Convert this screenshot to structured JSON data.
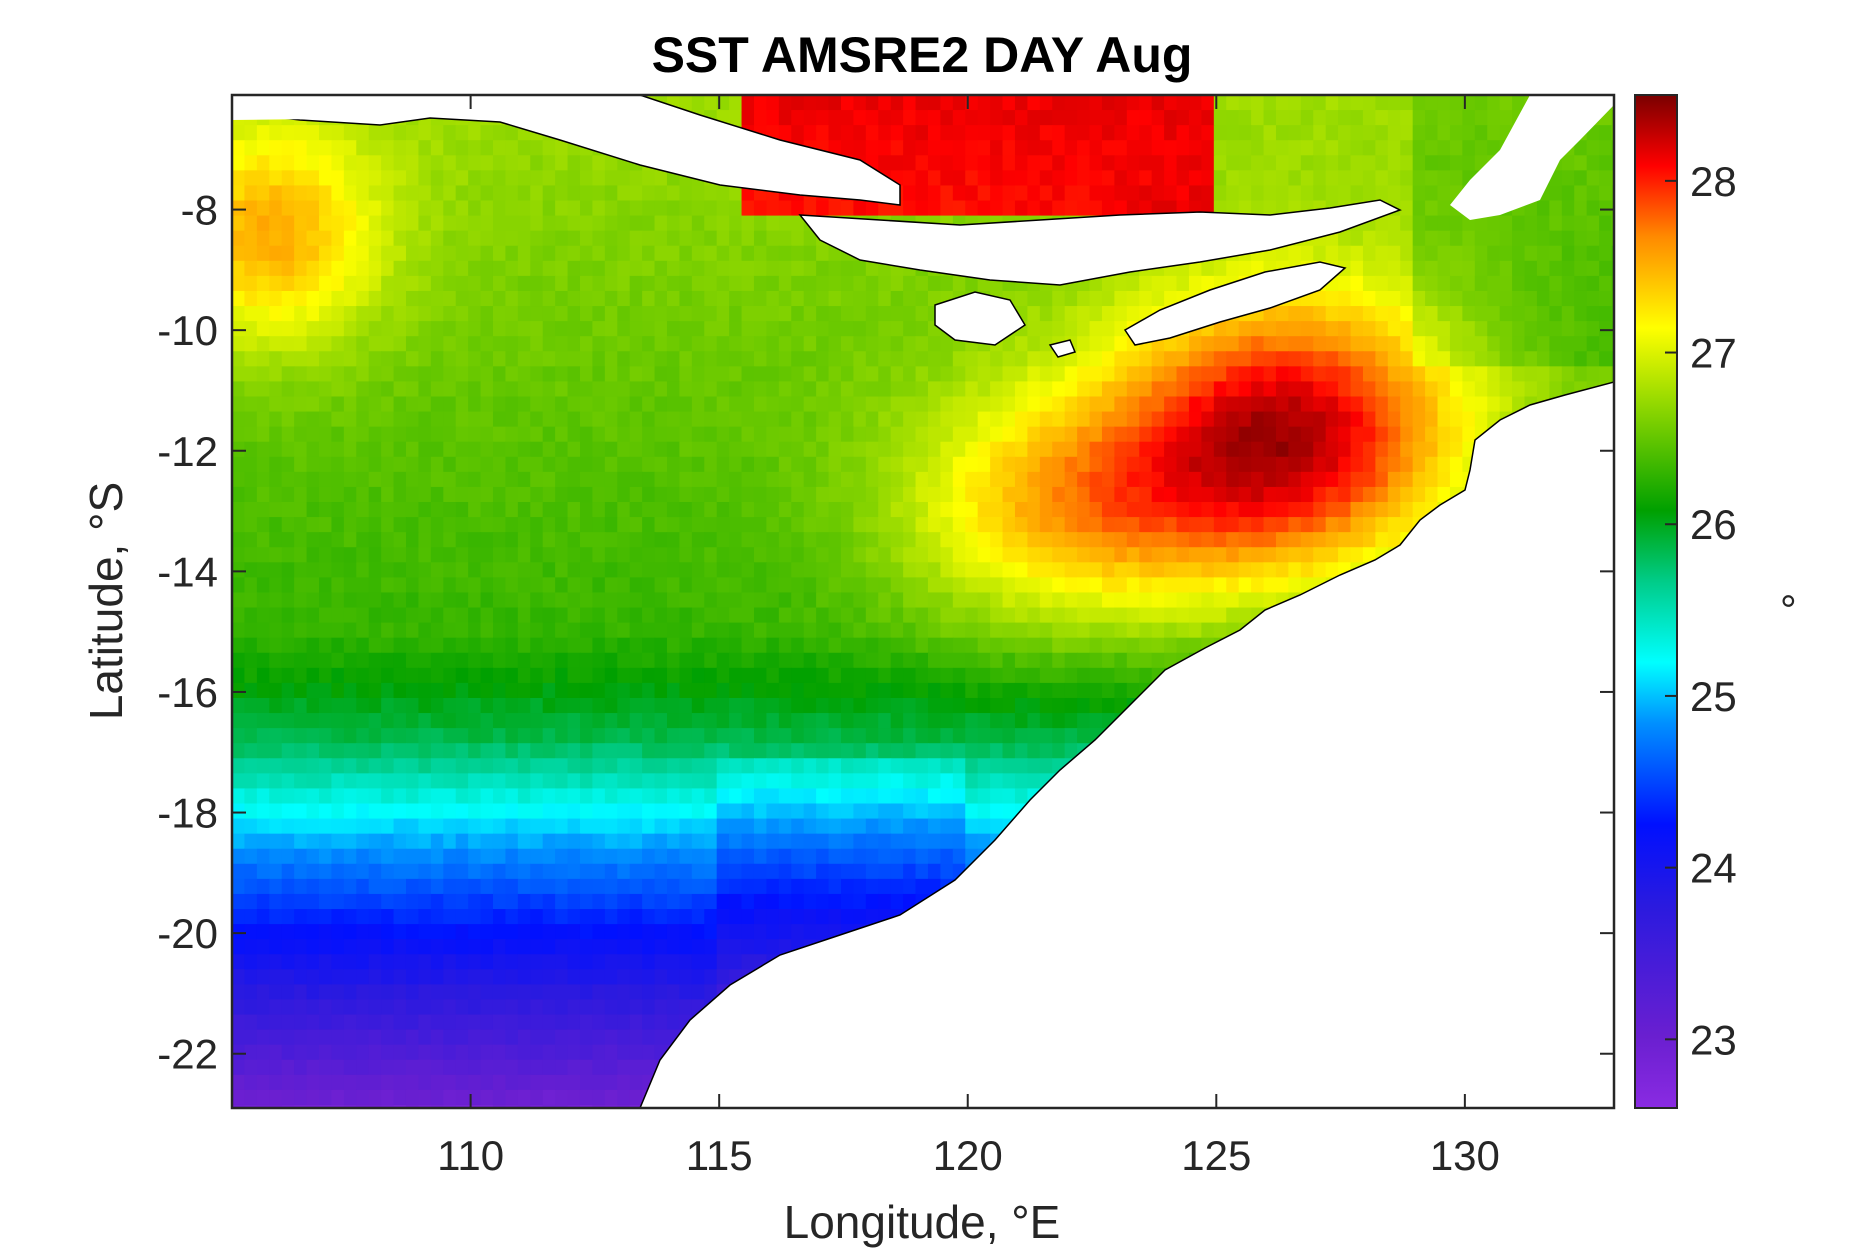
{
  "chart_data": {
    "type": "heatmap",
    "title": "SST AMSRE2 DAY Aug",
    "xlabel": "Longitude, °E",
    "ylabel": "Latitude, °S",
    "xlim": [
      105.2,
      133.0
    ],
    "ylim": [
      -22.9,
      -6.1
    ],
    "x_ticks": [
      110,
      115,
      120,
      125,
      130
    ],
    "x_tick_labels": [
      "110",
      "115",
      "120",
      "125",
      "130"
    ],
    "y_ticks": [
      -8,
      -10,
      -12,
      -14,
      -16,
      -18,
      -20,
      -22
    ],
    "y_tick_labels": [
      "-8",
      "-10",
      "-12",
      "-14",
      "-16",
      "-18",
      "-20",
      "-22"
    ],
    "grid": false,
    "colorbar": {
      "label": "°",
      "range": [
        22.6,
        28.5
      ],
      "ticks": [
        23,
        24,
        25,
        26,
        27,
        28
      ],
      "tick_labels": [
        "23",
        "24",
        "25",
        "26",
        "27",
        "28"
      ],
      "colormap": "jet-like (purple-blue-cyan-green-yellow-red-darkred)"
    },
    "field_description_note": "",
    "warm_core": {
      "lon": 126.5,
      "lat": -11.5,
      "value": 28.1
    },
    "cold_core": {
      "lon": 107.0,
      "lat": -22.0,
      "value": 22.9
    },
    "regions": [
      {
        "lon_range": [
          105.2,
          108
        ],
        "lat_range": [
          -10,
          -7.5
        ],
        "value": 27.2
      },
      {
        "lon_range": [
          108,
          118
        ],
        "lat_range": [
          -15,
          -9
        ],
        "value": 26.4
      },
      {
        "lon_range": [
          118,
          124
        ],
        "lat_range": [
          -15,
          -10.5
        ],
        "value": 27.3
      },
      {
        "lon_range": [
          124,
          129.5
        ],
        "lat_range": [
          -13.5,
          -9.5
        ],
        "value": 27.9
      },
      {
        "lon_range": [
          105.2,
          121
        ],
        "lat_range": [
          -17,
          -15.5
        ],
        "value": 26.0
      },
      {
        "lon_range": [
          105.2,
          121
        ],
        "lat_range": [
          -18.5,
          -17
        ],
        "value": 25.2
      },
      {
        "lon_range": [
          105.2,
          120
        ],
        "lat_range": [
          -20,
          -18.5
        ],
        "value": 24.4
      },
      {
        "lon_range": [
          105.2,
          113
        ],
        "lat_range": [
          -22.9,
          -20
        ],
        "value": 23.3
      },
      {
        "lon_range": [
          116,
          125
        ],
        "lat_range": [
          -8,
          -6.1
        ],
        "value": 27.8
      },
      {
        "lon_range": [
          125,
          133
        ],
        "lat_range": [
          -10.5,
          -6.1
        ],
        "value": 26.5
      }
    ]
  }
}
